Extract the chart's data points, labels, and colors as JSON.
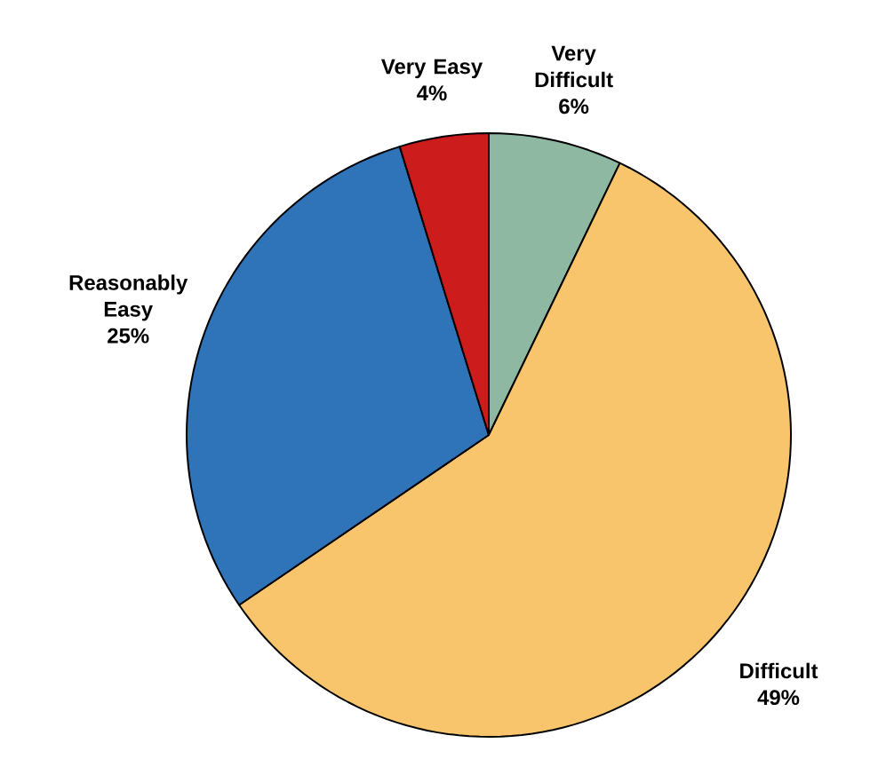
{
  "chart_data": {
    "type": "pie",
    "categories": [
      "Very Difficult",
      "Difficult",
      "Reasonably Easy",
      "Very Easy"
    ],
    "values": [
      6,
      49,
      25,
      4
    ],
    "value_labels": [
      "6%",
      "49%",
      "25%",
      "4%"
    ],
    "colors": [
      "#8fb8a2",
      "#f8c46c",
      "#2f73b8",
      "#cc1c1c"
    ]
  }
}
